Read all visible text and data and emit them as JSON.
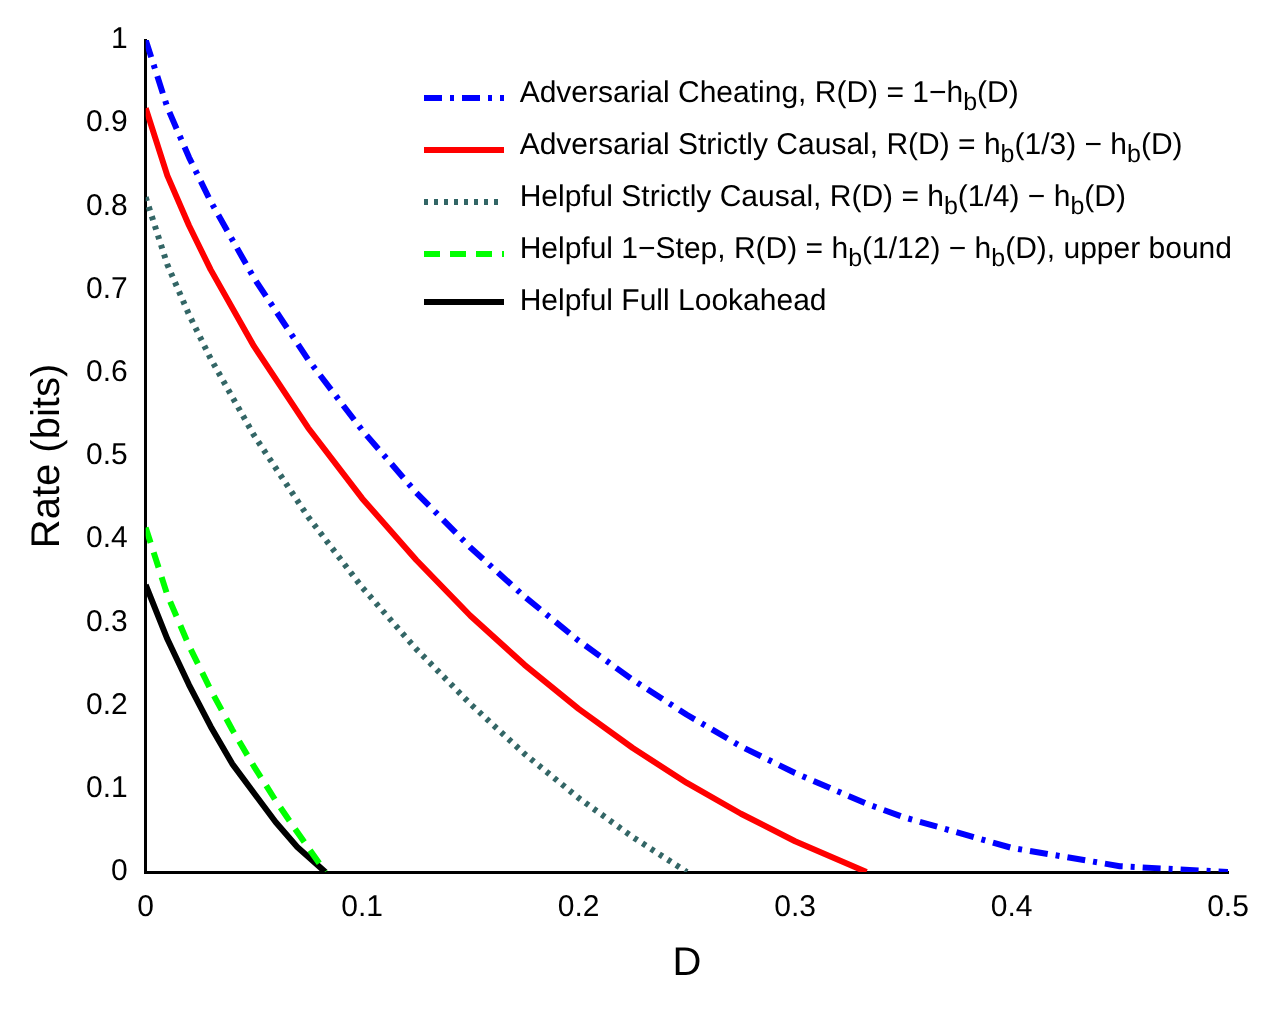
{
  "chart_data": {
    "type": "line",
    "xlabel": "D",
    "ylabel": "Rate (bits)",
    "xlim": [
      0,
      0.5
    ],
    "xticks": [
      0,
      0.1,
      0.2,
      0.3,
      0.4,
      0.5
    ],
    "ylim": [
      0,
      1
    ],
    "yticks": [
      0,
      0.1,
      0.2,
      0.3,
      0.4,
      0.5,
      0.6,
      0.7,
      0.8,
      0.9,
      1
    ],
    "grid": false,
    "legend": "top right",
    "marker": "none",
    "series": [
      {
        "name": "Adversarial Cheating, R(D) = 1−h$_{b}$(D)",
        "color": "#0000ff",
        "line_style": "dashdot",
        "x": [
          0,
          0.01,
          0.02,
          0.03,
          0.05,
          0.075,
          0.1,
          0.125,
          0.15,
          0.175,
          0.2,
          0.225,
          0.25,
          0.275,
          0.3,
          0.333,
          0.35,
          0.4,
          0.45,
          0.5
        ],
        "values": [
          1,
          0.919,
          0.859,
          0.806,
          0.714,
          0.616,
          0.531,
          0.456,
          0.39,
          0.331,
          0.278,
          0.231,
          0.189,
          0.151,
          0.119,
          0.082,
          0.066,
          0.029,
          0.007,
          0
        ]
      },
      {
        "name": "Adversarial Strictly Causal, R(D) = h$_{b}$(1/3) − h$_{b}$(D)",
        "color": "#ff0000",
        "line_style": "solid",
        "x": [
          0,
          0.01,
          0.02,
          0.03,
          0.05,
          0.075,
          0.1,
          0.125,
          0.15,
          0.175,
          0.2,
          0.225,
          0.25,
          0.275,
          0.3,
          0.333
        ],
        "values": [
          0.918,
          0.837,
          0.777,
          0.724,
          0.632,
          0.534,
          0.449,
          0.375,
          0.308,
          0.249,
          0.196,
          0.149,
          0.107,
          0.07,
          0.037,
          0
        ]
      },
      {
        "name": "Helpful Strictly Causal, R(D) = h$_{b}$(1/4) − h$_{b}$(D)",
        "color": "#336666",
        "line_style": "dotted",
        "x": [
          0,
          0.01,
          0.02,
          0.03,
          0.05,
          0.075,
          0.1,
          0.125,
          0.15,
          0.175,
          0.2,
          0.225,
          0.25
        ],
        "values": [
          0.811,
          0.73,
          0.67,
          0.617,
          0.525,
          0.427,
          0.342,
          0.268,
          0.202,
          0.142,
          0.089,
          0.042,
          0
        ]
      },
      {
        "name": "Helpful 1−Step, R(D) = h$_{b}$(1/12) − h$_{b}$(D), upper bound",
        "color": "#00ff00",
        "line_style": "dashed",
        "x": [
          0,
          0.01,
          0.02,
          0.03,
          0.04,
          0.05,
          0.06,
          0.07,
          0.083
        ],
        "values": [
          0.414,
          0.333,
          0.272,
          0.219,
          0.171,
          0.127,
          0.086,
          0.048,
          0
        ]
      },
      {
        "name": "Helpful Full Lookahead",
        "color": "#000000",
        "line_style": "solid",
        "x": [
          0,
          0.01,
          0.02,
          0.03,
          0.04,
          0.05,
          0.06,
          0.07,
          0.083
        ],
        "values": [
          0.345,
          0.28,
          0.225,
          0.175,
          0.13,
          0.095,
          0.06,
          0.03,
          0
        ]
      }
    ]
  }
}
